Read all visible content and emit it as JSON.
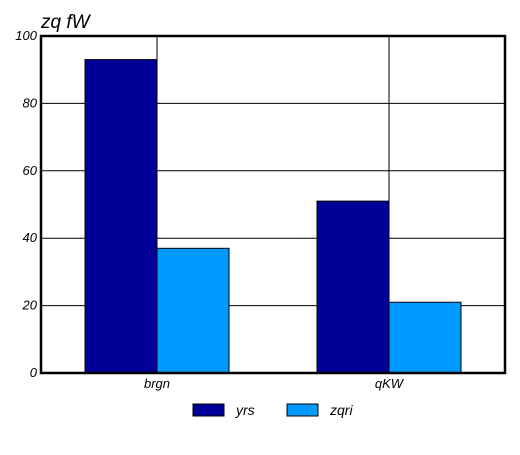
{
  "chart_data": {
    "type": "bar",
    "title": "zq  fW",
    "xlabel": "",
    "ylabel": "",
    "categories": [
      "brgn",
      "qKW"
    ],
    "series": [
      {
        "name": "yrs",
        "values": [
          93,
          51
        ],
        "color": "#000099"
      },
      {
        "name": "zqri",
        "values": [
          37,
          21
        ],
        "color": "#0099ff"
      }
    ],
    "ylim": [
      0,
      100
    ],
    "yticks": [
      0,
      20,
      40,
      60,
      80,
      100
    ],
    "grid": true,
    "legend_position": "bottom"
  }
}
